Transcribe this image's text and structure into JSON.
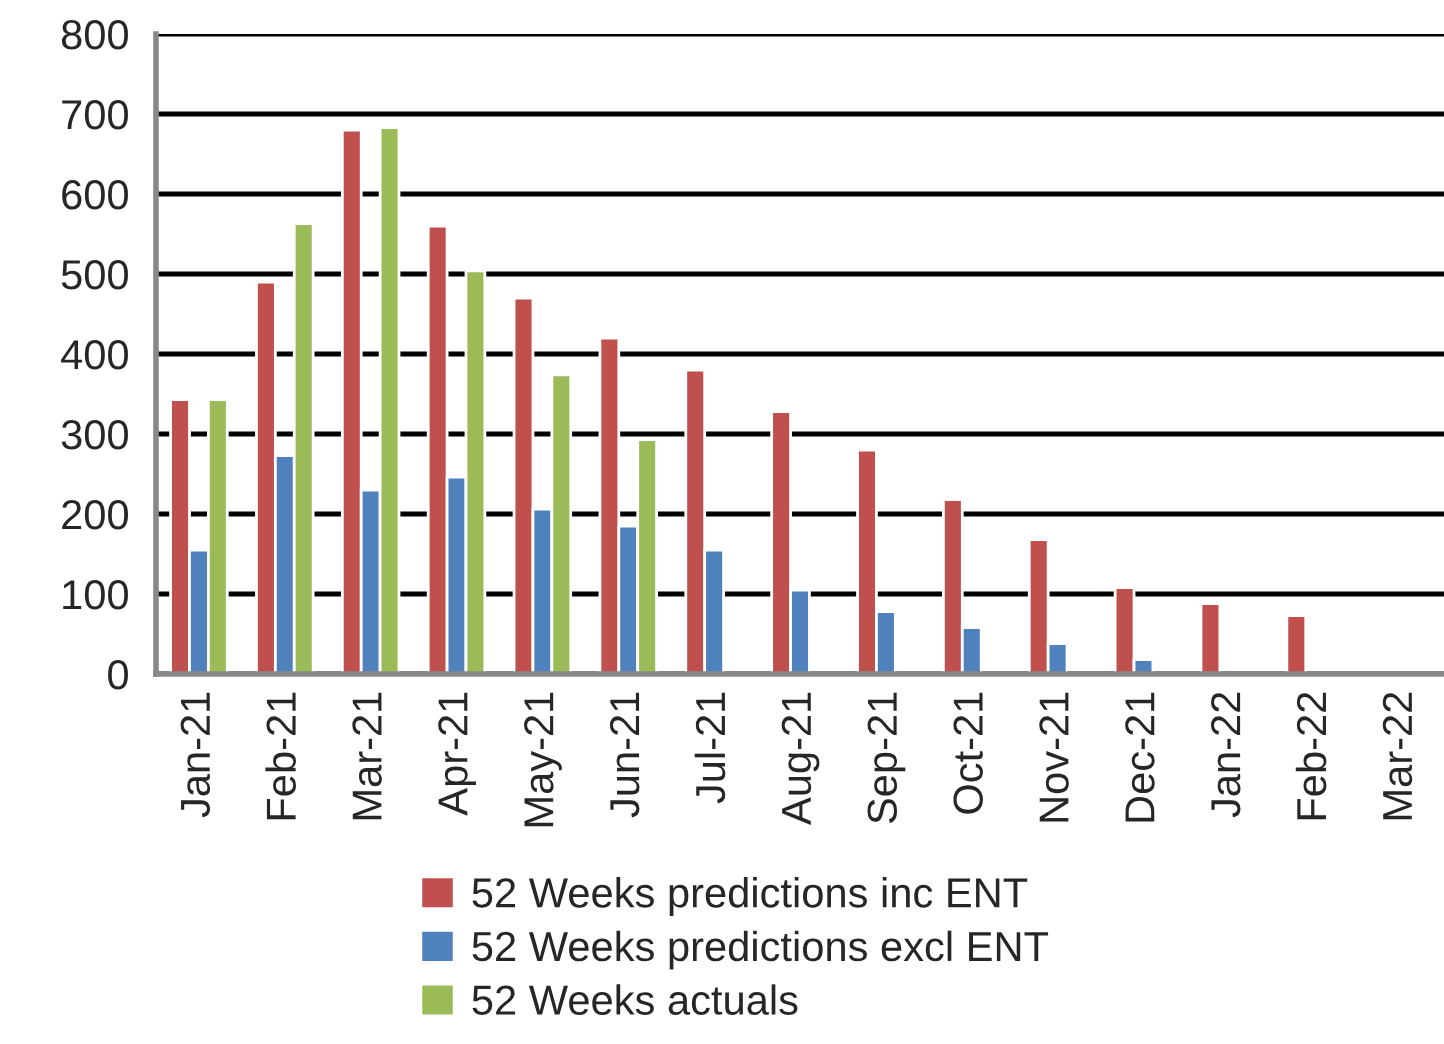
{
  "chart_data": {
    "type": "bar",
    "categories": [
      "Jan-21",
      "Feb-21",
      "Mar-21",
      "Apr-21",
      "May-21",
      "Jun-21",
      "Jul-21",
      "Aug-21",
      "Sep-21",
      "Oct-21",
      "Nov-21",
      "Dec-21",
      "Jan-22",
      "Feb-22",
      "Mar-22"
    ],
    "series": [
      {
        "name": "52 Weeks predictions inc ENT",
        "color": "#c0504d",
        "values": [
          343,
          490,
          680,
          560,
          470,
          420,
          380,
          328,
          280,
          218,
          168,
          108,
          88,
          73,
          null
        ]
      },
      {
        "name": "52 Weeks predictions excl ENT",
        "color": "#4f81bd",
        "values": [
          155,
          273,
          230,
          246,
          206,
          185,
          155,
          105,
          78,
          58,
          38,
          18,
          null,
          null,
          null
        ]
      },
      {
        "name": "52 Weeks actuals",
        "color": "#9bbb59",
        "values": [
          343,
          563,
          683,
          504,
          374,
          293,
          null,
          null,
          null,
          null,
          null,
          null,
          null,
          null,
          null
        ]
      }
    ],
    "ylim": [
      0,
      800
    ],
    "yticks": [
      0,
      100,
      200,
      300,
      400,
      500,
      600,
      700,
      800
    ],
    "grid": "y",
    "legend": "bottom"
  }
}
